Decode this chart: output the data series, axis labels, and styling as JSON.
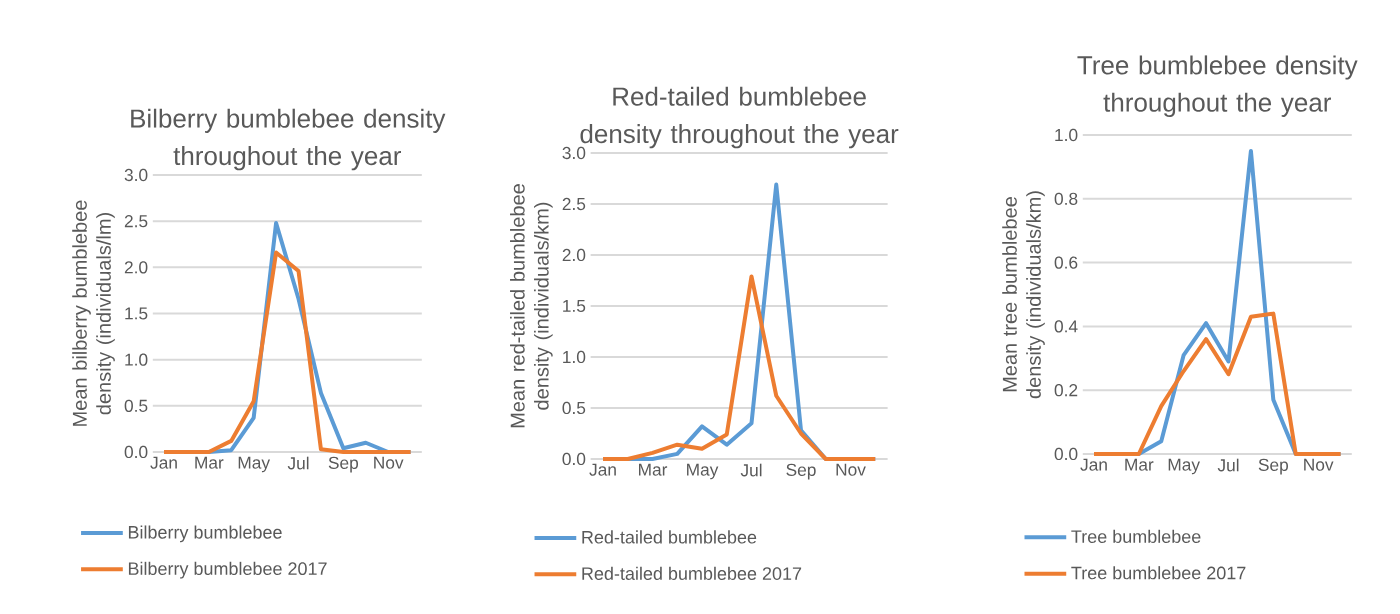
{
  "chart_data": [
    {
      "type": "line",
      "title": "Bilberry bumblebee density throughout the year",
      "ylabel": "Mean bilberry bumblebee density (individuals/lm)",
      "categories": [
        "Jan",
        null,
        "Mar",
        null,
        "May",
        null,
        "Jul",
        null,
        "Sep",
        null,
        "Nov",
        null
      ],
      "series": [
        {
          "name": "Bilberry bumblebee",
          "color": "#5b9bd5",
          "values": [
            0,
            0,
            0,
            0.02,
            0.37,
            2.48,
            1.66,
            0.64,
            0.04,
            0.1,
            0,
            0
          ]
        },
        {
          "name": "Bilberry bumblebee 2017",
          "color": "#ed7d31",
          "values": [
            0,
            0,
            0,
            0.12,
            0.55,
            2.16,
            1.96,
            0.03,
            0,
            0,
            0,
            0
          ]
        }
      ],
      "ylim": [
        0,
        3
      ],
      "yticks": [
        {
          "value": 0,
          "label": "0.0"
        },
        {
          "value": 0.5,
          "label": "0.5"
        },
        {
          "value": 1,
          "label": "1.0"
        },
        {
          "value": 1.5,
          "label": "1.5"
        },
        {
          "value": 2,
          "label": "2.0"
        },
        {
          "value": 2.5,
          "label": "2.5"
        },
        {
          "value": 3,
          "label": "3.0"
        }
      ],
      "grid": "y",
      "legend": "bottom"
    },
    {
      "type": "line",
      "title": "Red-tailed bumblebee density throughout the year",
      "ylabel": "Mean red-tailed bumblebee density (individuals/km)",
      "categories": [
        "Jan",
        null,
        "Mar",
        null,
        "May",
        null,
        "Jul",
        null,
        "Sep",
        null,
        "Nov",
        null
      ],
      "series": [
        {
          "name": "Red-tailed bumblebee",
          "color": "#5b9bd5",
          "values": [
            0,
            0,
            0,
            0.05,
            0.32,
            0.14,
            0.35,
            2.69,
            0.28,
            0,
            0,
            0
          ]
        },
        {
          "name": "Red-tailed bumblebee 2017",
          "color": "#ed7d31",
          "values": [
            0,
            0,
            0.06,
            0.14,
            0.1,
            0.24,
            1.79,
            0.62,
            0.25,
            0,
            0,
            0
          ]
        }
      ],
      "ylim": [
        0,
        3
      ],
      "yticks": [
        {
          "value": 0,
          "label": "0.0"
        },
        {
          "value": 0.5,
          "label": "0.5"
        },
        {
          "value": 1,
          "label": "1.0"
        },
        {
          "value": 1.5,
          "label": "1.5"
        },
        {
          "value": 2,
          "label": "2.0"
        },
        {
          "value": 2.5,
          "label": "2.5"
        },
        {
          "value": 3,
          "label": "3.0"
        }
      ],
      "grid": "y",
      "legend": "bottom"
    },
    {
      "type": "line",
      "title": "Tree bumblebee density throughout the year",
      "ylabel": "Mean tree bumblebee density (individuals/km)",
      "categories": [
        "Jan",
        null,
        "Mar",
        null,
        "May",
        null,
        "Jul",
        null,
        "Sep",
        null,
        "Nov",
        null
      ],
      "series": [
        {
          "name": "Tree bumblebee",
          "color": "#5b9bd5",
          "values": [
            0,
            0,
            0,
            0.04,
            0.31,
            0.41,
            0.29,
            0.95,
            0.17,
            0,
            0,
            0
          ]
        },
        {
          "name": "Tree bumblebee 2017",
          "color": "#ed7d31",
          "values": [
            0,
            0,
            0,
            0.15,
            0.26,
            0.36,
            0.25,
            0.43,
            0.44,
            0,
            0,
            0
          ]
        }
      ],
      "ylim": [
        0,
        1
      ],
      "yticks": [
        {
          "value": 0,
          "label": "0.0"
        },
        {
          "value": 0.2,
          "label": "0.2"
        },
        {
          "value": 0.4,
          "label": "0.4"
        },
        {
          "value": 0.6,
          "label": "0.6"
        },
        {
          "value": 0.8,
          "label": "0.8"
        },
        {
          "value": 1,
          "label": "1.0"
        }
      ],
      "grid": "y",
      "legend": "bottom"
    }
  ]
}
